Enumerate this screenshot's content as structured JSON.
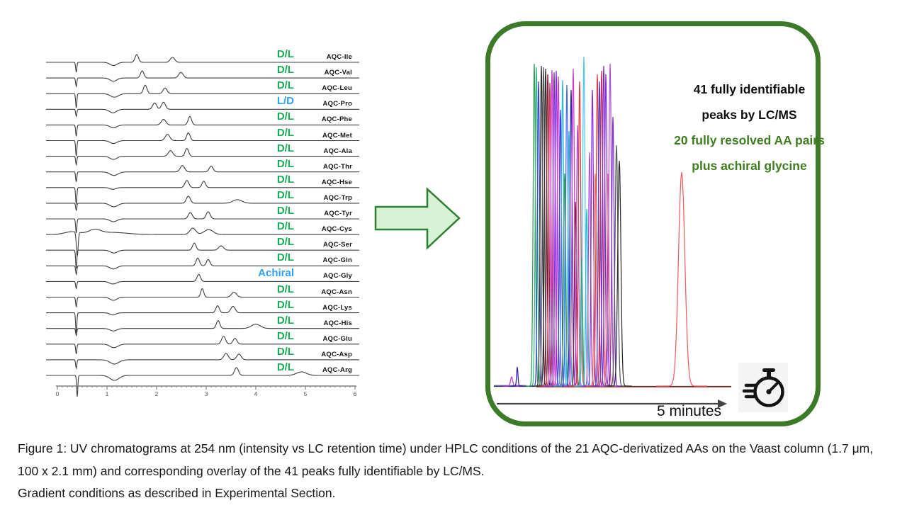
{
  "left_panel": {
    "axis": {
      "major_ticks": [
        "0",
        "1",
        "2",
        "3",
        "4",
        "5",
        "6"
      ],
      "minor_step": 0.1,
      "x_range": [
        0,
        6
      ]
    },
    "tag_colors": {
      "green": "#16ad55",
      "blue": "#2e9ff2"
    },
    "trace_color": "#3c3c3c",
    "traces": [
      {
        "tag": "D/L",
        "tag_color": "green",
        "name": "AQC-Ile",
        "peaks": [
          [
            0.38,
            -14,
            0.012
          ],
          [
            1.13,
            -4.5,
            0.07
          ],
          [
            1.6,
            11,
            0.035
          ],
          [
            2.32,
            7,
            0.045
          ]
        ]
      },
      {
        "tag": "D/L",
        "tag_color": "green",
        "name": "AQC-Val",
        "peaks": [
          [
            0.38,
            -12,
            0.012
          ],
          [
            1.13,
            -4.5,
            0.07
          ],
          [
            1.71,
            10,
            0.035
          ],
          [
            2.49,
            8,
            0.045
          ]
        ]
      },
      {
        "tag": "D/L",
        "tag_color": "green",
        "name": "AQC-Leu",
        "peaks": [
          [
            0.38,
            -20,
            0.012
          ],
          [
            1.15,
            -5,
            0.08
          ],
          [
            1.77,
            12,
            0.035
          ],
          [
            2.17,
            8,
            0.04
          ]
        ]
      },
      {
        "tag": "L/D",
        "tag_color": "blue",
        "name": "AQC-Pro",
        "peaks": [
          [
            0.38,
            -10,
            0.012
          ],
          [
            1.12,
            -5,
            0.07
          ],
          [
            1.96,
            9,
            0.04
          ],
          [
            2.14,
            10,
            0.04
          ]
        ]
      },
      {
        "tag": "D/L",
        "tag_color": "green",
        "name": "AQC-Phe",
        "peaks": [
          [
            0.38,
            -16,
            0.012
          ],
          [
            1.13,
            -4,
            0.07
          ],
          [
            2.14,
            8,
            0.045
          ],
          [
            2.67,
            12,
            0.035
          ]
        ]
      },
      {
        "tag": "D/L",
        "tag_color": "green",
        "name": "AQC-Met",
        "peaks": [
          [
            0.38,
            -22,
            0.012
          ],
          [
            1.13,
            -4,
            0.07
          ],
          [
            2.22,
            9,
            0.045
          ],
          [
            2.64,
            11,
            0.035
          ]
        ]
      },
      {
        "tag": "D/L",
        "tag_color": "green",
        "name": "AQC-Ala",
        "peaks": [
          [
            0.38,
            -12,
            0.012
          ],
          [
            1.13,
            -4.5,
            0.07
          ],
          [
            2.28,
            8,
            0.045
          ],
          [
            2.61,
            11,
            0.035
          ]
        ]
      },
      {
        "tag": "D/L",
        "tag_color": "green",
        "name": "AQC-Thr",
        "peaks": [
          [
            0.38,
            -14,
            0.012
          ],
          [
            1.14,
            -5,
            0.08
          ],
          [
            2.52,
            9,
            0.045
          ],
          [
            3.1,
            8,
            0.04
          ]
        ]
      },
      {
        "tag": "D/L",
        "tag_color": "green",
        "name": "AQC-Hse",
        "peaks": [
          [
            0.38,
            -24,
            0.012
          ],
          [
            1.12,
            -2.5,
            0.06
          ],
          [
            2.61,
            10,
            0.04
          ],
          [
            2.95,
            9,
            0.035
          ]
        ]
      },
      {
        "tag": "D/L",
        "tag_color": "green",
        "name": "AQC-Trp",
        "peaks": [
          [
            0.38,
            -10,
            0.012
          ],
          [
            1.14,
            -5,
            0.08
          ],
          [
            2.64,
            10,
            0.04
          ],
          [
            3.63,
            5,
            0.09
          ]
        ]
      },
      {
        "tag": "D/L",
        "tag_color": "green",
        "name": "AQC-Tyr",
        "peaks": [
          [
            0.38,
            -20,
            0.012
          ],
          [
            1.13,
            -4,
            0.07
          ],
          [
            2.68,
            9,
            0.04
          ],
          [
            3.04,
            10,
            0.04
          ]
        ]
      },
      {
        "tag": "D/L",
        "tag_color": "green",
        "name": "AQC-Cys",
        "peaks": [
          [
            0.3,
            4,
            0.15
          ],
          [
            0.4,
            -34,
            0.018
          ],
          [
            0.75,
            6,
            0.12
          ],
          [
            1.1,
            3,
            0.3
          ],
          [
            2.73,
            9,
            0.06
          ],
          [
            3.05,
            7,
            0.09
          ]
        ]
      },
      {
        "tag": "D/L",
        "tag_color": "green",
        "name": "AQC-Ser",
        "peaks": [
          [
            0.38,
            -26,
            0.012
          ],
          [
            1.14,
            -4,
            0.07
          ],
          [
            2.76,
            10,
            0.035
          ],
          [
            3.3,
            6,
            0.05
          ]
        ]
      },
      {
        "tag": "D/L",
        "tag_color": "green",
        "name": "AQC-Gln",
        "peaks": [
          [
            0.38,
            -12,
            0.012
          ],
          [
            1.13,
            -4.5,
            0.07
          ],
          [
            2.83,
            11,
            0.035
          ],
          [
            3.04,
            9,
            0.035
          ]
        ]
      },
      {
        "tag": "Achiral",
        "tag_color": "blue",
        "name": "AQC-Gly",
        "peaks": [
          [
            0.38,
            -10,
            0.012
          ],
          [
            1.12,
            -3.5,
            0.07
          ],
          [
            2.85,
            10,
            0.035
          ]
        ]
      },
      {
        "tag": "D/L",
        "tag_color": "green",
        "name": "AQC-Asn",
        "peaks": [
          [
            0.38,
            -14,
            0.012
          ],
          [
            1.13,
            -4.5,
            0.07
          ],
          [
            2.92,
            12,
            0.03
          ],
          [
            3.56,
            7,
            0.05
          ]
        ]
      },
      {
        "tag": "D/L",
        "tag_color": "green",
        "name": "AQC-Lys",
        "peaks": [
          [
            0.38,
            -28,
            0.012
          ],
          [
            1.12,
            -3,
            0.06
          ],
          [
            3.23,
            10,
            0.035
          ],
          [
            3.54,
            9,
            0.045
          ]
        ]
      },
      {
        "tag": "D/L",
        "tag_color": "green",
        "name": "AQC-His",
        "peaks": [
          [
            0.38,
            -10,
            0.012
          ],
          [
            1.13,
            -3.5,
            0.07
          ],
          [
            3.24,
            11,
            0.035
          ],
          [
            4.0,
            6,
            0.09
          ]
        ]
      },
      {
        "tag": "D/L",
        "tag_color": "green",
        "name": "AQC-Glu",
        "peaks": [
          [
            0.38,
            -14,
            0.012
          ],
          [
            1.14,
            -5,
            0.08
          ],
          [
            3.35,
            11,
            0.04
          ],
          [
            3.58,
            8,
            0.04
          ]
        ]
      },
      {
        "tag": "D/L",
        "tag_color": "green",
        "name": "AQC-Asp",
        "peaks": [
          [
            0.38,
            -12,
            0.012
          ],
          [
            1.15,
            -6,
            0.09
          ],
          [
            3.4,
            9,
            0.045
          ],
          [
            3.66,
            8,
            0.045
          ]
        ]
      },
      {
        "tag": "D/L",
        "tag_color": "green",
        "name": "AQC-Arg",
        "peaks": [
          [
            0.4,
            -30,
            0.012
          ],
          [
            1.15,
            -7,
            0.09
          ],
          [
            3.61,
            11,
            0.04
          ],
          [
            4.92,
            5,
            0.1
          ]
        ]
      }
    ]
  },
  "right_panel": {
    "border_color": "#3d7a28",
    "headline_black": {
      "line1": "41 fully identifiable",
      "line2": "peaks by LC/MS"
    },
    "headline_green": {
      "line1": "20 fully resolved AA pairs",
      "line2": "plus achiral glycine",
      "color": "#3f7d20"
    },
    "time_label": "5 minutes",
    "overlay_peaks": [
      [
        25,
        13,
        1.5,
        "#c040c0"
      ],
      [
        33,
        26,
        1.0,
        "#2823b0"
      ],
      [
        57,
        455,
        1.6,
        "#2f9e4f"
      ],
      [
        60,
        450,
        1.6,
        "#3cb389"
      ],
      [
        63,
        430,
        1.5,
        "#3a46d6"
      ],
      [
        67,
        452,
        1.6,
        "#2e2e2e"
      ],
      [
        70,
        450,
        1.6,
        "#5a5a5a"
      ],
      [
        73,
        448,
        1.7,
        "#2e2e2e"
      ],
      [
        76,
        440,
        1.6,
        "#8c1d2f"
      ],
      [
        79,
        428,
        1.6,
        "#d82a5a"
      ],
      [
        82,
        446,
        1.6,
        "#d23ad2"
      ],
      [
        85,
        443,
        1.6,
        "#7a30c8"
      ],
      [
        88,
        445,
        1.7,
        "#8a2be2"
      ],
      [
        91,
        437,
        1.6,
        "#d23ad2"
      ],
      [
        94,
        390,
        1.5,
        "#3a46d6"
      ],
      [
        97,
        432,
        1.6,
        "#27b8dc"
      ],
      [
        100,
        300,
        1.5,
        "#2f9e4f"
      ],
      [
        103,
        425,
        1.6,
        "#4868e8"
      ],
      [
        106,
        360,
        1.5,
        "#27b8dc"
      ],
      [
        109,
        418,
        1.6,
        "#2823b0"
      ],
      [
        112,
        448,
        1.7,
        "#d23ad2"
      ],
      [
        115,
        260,
        1.4,
        "#8c1d2f"
      ],
      [
        118,
        368,
        1.5,
        "#b050d8"
      ],
      [
        121,
        430,
        1.7,
        "#e23a3a"
      ],
      [
        124,
        180,
        1.3,
        "#2f9e4f"
      ],
      [
        127,
        465,
        1.7,
        "#4fc3f7"
      ],
      [
        131,
        250,
        1.4,
        "#27b8dc"
      ],
      [
        135,
        330,
        1.5,
        "#b050d8"
      ],
      [
        139,
        418,
        1.6,
        "#8a2be2"
      ],
      [
        143,
        300,
        1.5,
        "#f07070"
      ],
      [
        146,
        440,
        1.7,
        "#e23a3a"
      ],
      [
        149,
        430,
        1.6,
        "#3a46d6"
      ],
      [
        152,
        445,
        1.7,
        "#d82a5a"
      ],
      [
        155,
        452,
        1.8,
        "#7a30c8"
      ],
      [
        158,
        440,
        1.7,
        "#8a2be2"
      ],
      [
        161,
        300,
        1.5,
        "#f07070"
      ],
      [
        164,
        455,
        1.8,
        "#b050d8"
      ],
      [
        168,
        380,
        1.6,
        "#7a30c8"
      ],
      [
        173,
        340,
        2.0,
        "#5a5a5a"
      ],
      [
        177,
        318,
        2.2,
        "#2e2e2e"
      ],
      [
        265,
        302,
        4.5,
        "#f06060"
      ]
    ]
  },
  "caption": {
    "line1": "Figure 1: UV chromatograms at 254 nm (intensity vs LC retention time) under HPLC conditions of the 21 AQC-derivatized AAs on the Vaast column (1.7 μm, 100 x 2.1 mm) and corresponding overlay of the 41 peaks fully identifiable by LC/MS.",
    "line2": "Gradient conditions as described in Experimental Section."
  }
}
